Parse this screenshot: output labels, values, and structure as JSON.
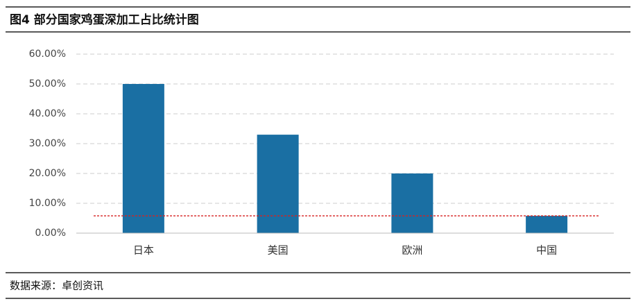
{
  "title": "图4 部分国家鸡蛋深加工占比统计图",
  "chart_data": {
    "type": "bar",
    "categories": [
      "日本",
      "美国",
      "欧洲",
      "中国"
    ],
    "values": [
      50,
      33,
      20,
      5.8
    ],
    "color": "#1a6fa3",
    "ylim": [
      0,
      60
    ],
    "yticks": [
      {
        "value": 0,
        "label": "0.00%"
      },
      {
        "value": 10,
        "label": "10.00%"
      },
      {
        "value": 20,
        "label": "20.00%"
      },
      {
        "value": 30,
        "label": "30.00%"
      },
      {
        "value": 40,
        "label": "40.00%"
      },
      {
        "value": 50,
        "label": "50.00%"
      },
      {
        "value": 60,
        "label": "60.00%"
      }
    ],
    "grid": true,
    "reference_line": {
      "value": 5.8,
      "color": "#d62020"
    }
  },
  "source": "数据来源：卓创资讯"
}
